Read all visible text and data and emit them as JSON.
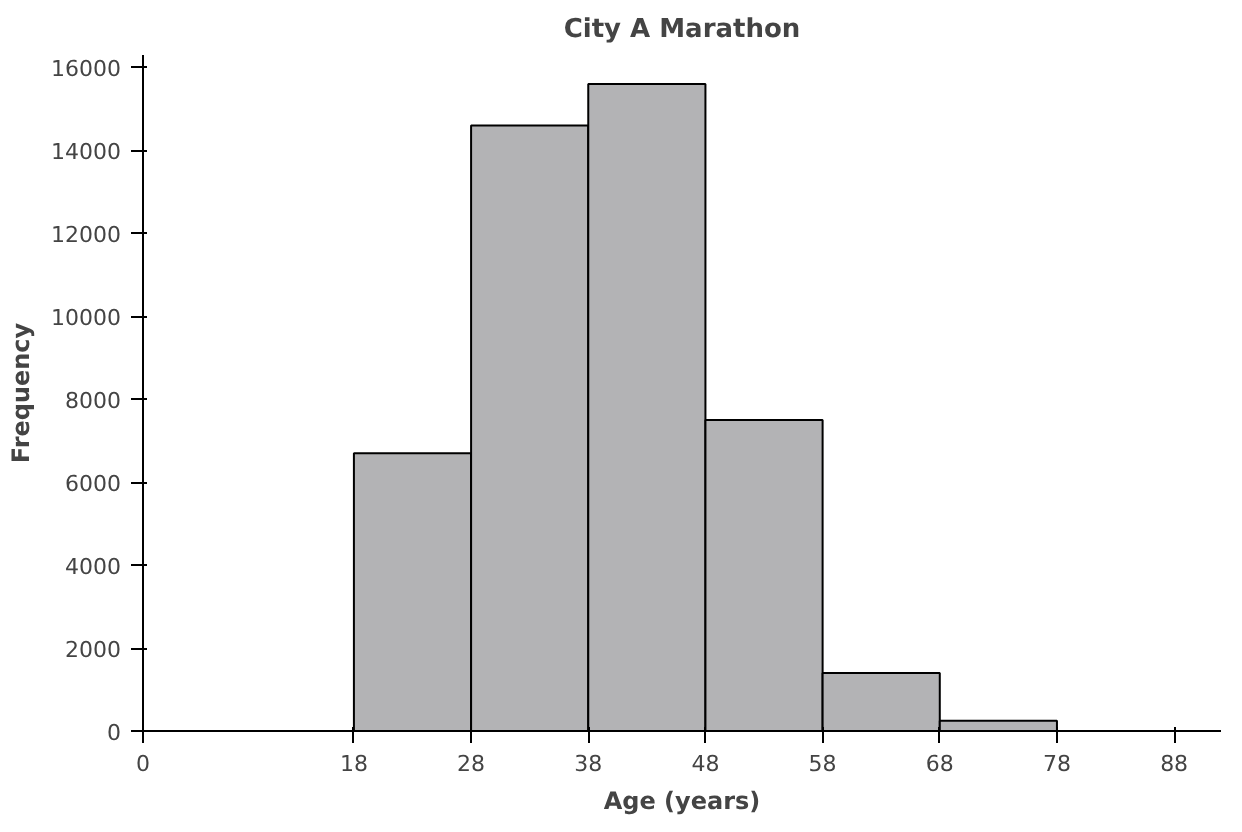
{
  "chart_data": {
    "type": "histogram",
    "title": "City A Marathon",
    "xlabel": "Age (years)",
    "ylabel": "Frequency",
    "bins": [
      18,
      28,
      38,
      48,
      58,
      68,
      78
    ],
    "values": [
      6700,
      14600,
      15600,
      7500,
      1400,
      250
    ],
    "color": "#b3b3b5",
    "xlim": [
      0,
      92
    ],
    "xticks": [
      0,
      18,
      28,
      38,
      48,
      58,
      68,
      78,
      88
    ],
    "ylim": [
      0,
      16300
    ],
    "yticks": [
      0,
      2000,
      4000,
      6000,
      8000,
      10000,
      12000,
      14000,
      16000
    ],
    "grid": false
  }
}
